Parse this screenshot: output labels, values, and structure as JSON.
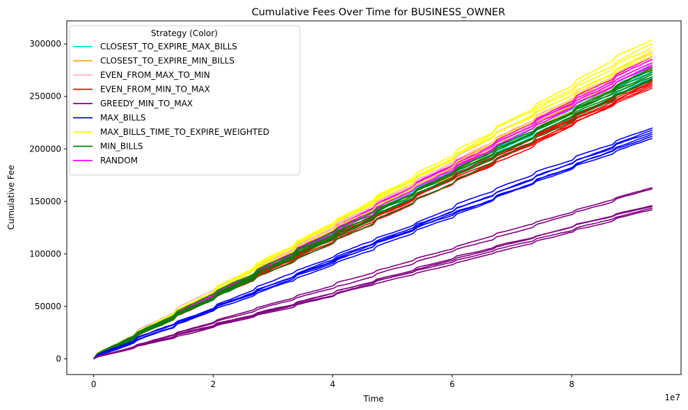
{
  "chart_data": {
    "type": "line",
    "title": "Cumulative Fees Over Time for BUSINESS_OWNER",
    "xlabel": "Time",
    "ylabel": "Cumulative Fee",
    "x_offset_label": "1e7",
    "xlim": [
      -4500000.0,
      98300000.0
    ],
    "ylim": [
      -15000,
      322000
    ],
    "xticks": [
      0,
      20000000.0,
      40000000.0,
      60000000.0,
      80000000.0
    ],
    "xtick_labels": [
      "0",
      "2",
      "4",
      "6",
      "8"
    ],
    "yticks": [
      0,
      50000,
      100000,
      150000,
      200000,
      250000,
      300000
    ],
    "ytick_labels": [
      "0",
      "50000",
      "100000",
      "150000",
      "200000",
      "250000",
      "300000"
    ],
    "grid": false,
    "legend": {
      "title": "Strategy (Color)",
      "placement": "top-left"
    },
    "x_end": 93500000.0,
    "series": [
      {
        "name": "CLOSEST_TO_EXPIRE_MAX_BILLS",
        "color": "#00e5ee",
        "runs": 5,
        "end_values": [
          268000,
          271000,
          274000,
          277000,
          280000
        ]
      },
      {
        "name": "CLOSEST_TO_EXPIRE_MIN_BILLS",
        "color": "#ffa500",
        "runs": 5,
        "end_values": [
          276000,
          279000,
          282000,
          285000,
          288000
        ]
      },
      {
        "name": "EVEN_FROM_MAX_TO_MIN",
        "color": "#ffb6c1",
        "runs": 5,
        "end_values": [
          278000,
          282000,
          286000,
          289000,
          292000
        ]
      },
      {
        "name": "EVEN_FROM_MIN_TO_MAX",
        "color": "#ff0000",
        "runs": 8,
        "end_values": [
          258000,
          259500,
          261000,
          262500,
          264000,
          265000,
          266000,
          267000
        ]
      },
      {
        "name": "GREEDY_MIN_TO_MAX",
        "color": "#800080",
        "runs": 6,
        "end_values": [
          142000,
          143500,
          145000,
          146000,
          162000,
          163000
        ]
      },
      {
        "name": "MAX_BILLS",
        "color": "#0000ff",
        "runs": 6,
        "end_values": [
          210000,
          212000,
          214000,
          216000,
          218000,
          220000
        ]
      },
      {
        "name": "MAX_BILLS_TIME_TO_EXPIRE_WEIGHTED",
        "color": "#ffff00",
        "runs": 6,
        "end_values": [
          288000,
          291000,
          294000,
          297000,
          300000,
          304000
        ]
      },
      {
        "name": "MIN_BILLS",
        "color": "#008000",
        "runs": 7,
        "end_values": [
          265000,
          267000,
          269000,
          271000,
          273000,
          275000,
          277000
        ]
      },
      {
        "name": "RANDOM",
        "color": "#ff00ff",
        "runs": 5,
        "end_values": [
          278000,
          280000,
          282000,
          285000,
          288000
        ]
      }
    ]
  }
}
